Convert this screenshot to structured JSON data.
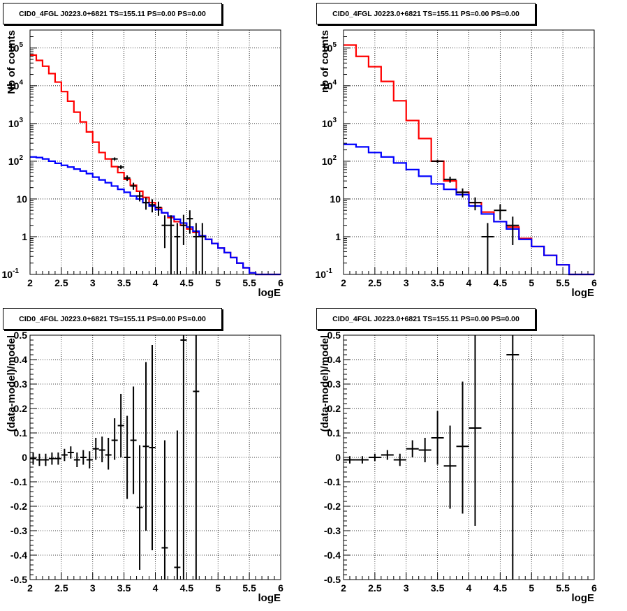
{
  "colors": {
    "total": "#ff0000",
    "model": "#0000ff",
    "data": "#000000",
    "grid": "#000000"
  },
  "chart_data": [
    {
      "type": "line",
      "title": "CID0_4FGL J0223.0+6821 TS=155.11 PS=0.00 PS=0.00",
      "xlabel": "logE",
      "ylabel": "Nb of counts",
      "xlim": [
        2,
        6
      ],
      "ylim": [
        0.1,
        300000
      ],
      "yscale": "log",
      "grid": true,
      "xticks": [
        "2",
        "2.5",
        "3",
        "3.5",
        "4",
        "4.5",
        "5",
        "5.5",
        "6"
      ],
      "yticks": [
        {
          "v": 0.1,
          "base": "10",
          "exp": "-1"
        },
        {
          "v": 1,
          "label": "1"
        },
        {
          "v": 10,
          "label": "10"
        },
        {
          "v": 100,
          "base": "10",
          "exp": "2"
        },
        {
          "v": 1000,
          "base": "10",
          "exp": "3"
        },
        {
          "v": 10000,
          "base": "10",
          "exp": "4"
        },
        {
          "v": 100000,
          "base": "10",
          "exp": "5"
        }
      ],
      "edges": [
        2,
        2.1,
        2.2,
        2.3,
        2.4,
        2.5,
        2.6,
        2.7,
        2.8,
        2.9,
        3.0,
        3.1,
        3.2,
        3.3,
        3.4,
        3.5,
        3.6,
        3.7,
        3.8,
        3.9,
        4.0,
        4.1,
        4.2,
        4.3,
        4.4,
        4.5,
        4.6,
        4.7,
        4.8,
        4.9,
        5.0,
        5.1,
        5.2,
        5.3,
        5.4,
        5.5,
        5.6,
        5.7,
        5.8,
        5.9,
        6.0
      ],
      "series": [
        {
          "name": "",
          "role": "total",
          "values": [
            65000,
            47000,
            33000,
            21000,
            12500,
            7000,
            3900,
            2000,
            1100,
            600,
            320,
            170,
            115,
            72,
            50,
            33,
            23,
            16,
            11,
            8,
            5.8,
            4.3,
            3.2,
            2.5,
            2.0,
            1.6,
            1.3,
            1.05,
            0.85,
            0.66,
            0.5,
            0.38,
            0.28,
            0.2,
            0.15,
            0.11,
            0.1,
            0.1,
            0.1,
            0.1
          ]
        },
        {
          "name": "",
          "role": "model",
          "values": [
            130,
            125,
            115,
            100,
            88,
            78,
            70,
            62,
            55,
            47,
            38,
            32,
            27,
            22,
            18,
            15,
            12,
            10,
            8,
            6.5,
            5.2,
            4.3,
            3.5,
            2.9,
            2.3,
            1.8,
            1.4,
            1.05,
            0.85,
            0.66,
            0.5,
            0.38,
            0.28,
            0.2,
            0.15,
            0.11,
            0.1,
            0.1,
            0.1,
            0.1
          ]
        }
      ],
      "points": [
        {
          "x": 3.35,
          "y": 115,
          "xerr": 0.05,
          "ylo": 105,
          "yhi": 126
        },
        {
          "x": 3.45,
          "y": 70,
          "xerr": 0.05,
          "ylo": 62,
          "yhi": 79
        },
        {
          "x": 3.55,
          "y": 36,
          "xerr": 0.05,
          "ylo": 30,
          "yhi": 42
        },
        {
          "x": 3.65,
          "y": 22,
          "xerr": 0.05,
          "ylo": 17.5,
          "yhi": 27
        },
        {
          "x": 3.75,
          "y": 12,
          "xerr": 0.05,
          "ylo": 8.6,
          "yhi": 15.5
        },
        {
          "x": 3.85,
          "y": 8,
          "xerr": 0.05,
          "ylo": 5.2,
          "yhi": 11
        },
        {
          "x": 3.95,
          "y": 7,
          "xerr": 0.05,
          "ylo": 4.4,
          "yhi": 9.8
        },
        {
          "x": 4.05,
          "y": 6,
          "xerr": 0.05,
          "ylo": 3.6,
          "yhi": 8.5
        },
        {
          "x": 4.15,
          "y": 2,
          "xerr": 0.05,
          "ylo": 0.5,
          "yhi": 3.7
        },
        {
          "x": 4.25,
          "y": 2,
          "xerr": 0.05,
          "ylo": 0.1,
          "yhi": 3.7
        },
        {
          "x": 4.35,
          "y": 1,
          "xerr": 0.05,
          "ylo": 0.1,
          "yhi": 2.3
        },
        {
          "x": 4.45,
          "y": 2,
          "xerr": 0.05,
          "ylo": 0.6,
          "yhi": 3.8
        },
        {
          "x": 4.55,
          "y": 3,
          "xerr": 0.05,
          "ylo": 1.2,
          "yhi": 5.0
        },
        {
          "x": 4.65,
          "y": 1,
          "xerr": 0.05,
          "ylo": 0.1,
          "yhi": 2.3
        },
        {
          "x": 4.75,
          "y": 1,
          "xerr": 0.05,
          "ylo": 0.1,
          "yhi": 2.3
        }
      ]
    },
    {
      "type": "line",
      "title": "CID0_4FGL J0223.0+6821 TS=155.11 PS=0.00 PS=0.00",
      "xlabel": "logE",
      "ylabel": "nb of counts",
      "xlim": [
        2,
        6
      ],
      "ylim": [
        0.1,
        300000
      ],
      "yscale": "log",
      "grid": true,
      "xticks": [
        "2",
        "2.5",
        "3",
        "3.5",
        "4",
        "4.5",
        "5",
        "5.5",
        "6"
      ],
      "yticks": [
        {
          "v": 0.1,
          "base": "10",
          "exp": "-1"
        },
        {
          "v": 1,
          "label": "1"
        },
        {
          "v": 10,
          "label": "10"
        },
        {
          "v": 100,
          "base": "10",
          "exp": "2"
        },
        {
          "v": 1000,
          "base": "10",
          "exp": "3"
        },
        {
          "v": 10000,
          "base": "10",
          "exp": "4"
        },
        {
          "v": 100000,
          "base": "10",
          "exp": "5"
        }
      ],
      "edges": [
        2.0,
        2.2,
        2.4,
        2.6,
        2.8,
        3.0,
        3.2,
        3.4,
        3.6,
        3.8,
        4.0,
        4.2,
        4.4,
        4.6,
        4.8,
        5.0,
        5.2,
        5.4,
        5.6,
        5.8,
        6.0
      ],
      "series": [
        {
          "name": "",
          "role": "total",
          "values": [
            120000,
            60000,
            32000,
            13000,
            4000,
            1200,
            400,
            100,
            30,
            15,
            8,
            4.5,
            2.5,
            1.8,
            0.9,
            0.55,
            0.32,
            0.18,
            0.1,
            0.1
          ]
        },
        {
          "name": "",
          "role": "model",
          "values": [
            280,
            240,
            170,
            130,
            90,
            60,
            40,
            25,
            18,
            13,
            6.5,
            4.0,
            2.5,
            1.6,
            0.85,
            0.55,
            0.32,
            0.18,
            0.1,
            0.1
          ]
        }
      ],
      "points": [
        {
          "x": 3.5,
          "y": 100,
          "xerr": 0.1,
          "ylo": 90,
          "yhi": 110
        },
        {
          "x": 3.7,
          "y": 33,
          "xerr": 0.1,
          "ylo": 27,
          "yhi": 39
        },
        {
          "x": 3.9,
          "y": 15,
          "xerr": 0.1,
          "ylo": 11,
          "yhi": 19
        },
        {
          "x": 4.1,
          "y": 8,
          "xerr": 0.1,
          "ylo": 5,
          "yhi": 11
        },
        {
          "x": 4.3,
          "y": 1,
          "xerr": 0.1,
          "ylo": 0.1,
          "yhi": 2.3
        },
        {
          "x": 4.5,
          "y": 5,
          "xerr": 0.1,
          "ylo": 2.8,
          "yhi": 7.2
        },
        {
          "x": 4.7,
          "y": 2,
          "xerr": 0.1,
          "ylo": 0.6,
          "yhi": 3.4
        }
      ]
    },
    {
      "type": "scatter",
      "title": "CID0_4FGL J0223.0+6821 TS=155.11 PS=0.00 PS=0.00",
      "xlabel": "logE",
      "ylabel": "(data-model)/model",
      "xlim": [
        2,
        6
      ],
      "ylim": [
        -0.5,
        0.5
      ],
      "yscale": "linear",
      "grid": true,
      "xticks": [
        "2",
        "2.5",
        "3",
        "3.5",
        "4",
        "4.5",
        "5",
        "5.5",
        "6"
      ],
      "yticks": [
        {
          "v": -0.5,
          "label": "-0.5"
        },
        {
          "v": -0.4,
          "label": "-0.4"
        },
        {
          "v": -0.3,
          "label": "-0.3"
        },
        {
          "v": -0.2,
          "label": "-0.2"
        },
        {
          "v": -0.1,
          "label": "-0.1"
        },
        {
          "v": 0,
          "label": "0"
        },
        {
          "v": 0.1,
          "label": "0.1"
        },
        {
          "v": 0.2,
          "label": "0.2"
        },
        {
          "v": 0.3,
          "label": "0.3"
        },
        {
          "v": 0.4,
          "label": "0.4"
        },
        {
          "v": 0.5,
          "label": "0.5"
        }
      ],
      "points": [
        {
          "x": 2.05,
          "y": -0.005,
          "xerr": 0.05,
          "ylo": -0.03,
          "yhi": 0.02
        },
        {
          "x": 2.15,
          "y": -0.01,
          "xerr": 0.05,
          "ylo": -0.035,
          "yhi": 0.015
        },
        {
          "x": 2.25,
          "y": -0.01,
          "xerr": 0.05,
          "ylo": -0.035,
          "yhi": 0.015
        },
        {
          "x": 2.35,
          "y": -0.005,
          "xerr": 0.05,
          "ylo": -0.03,
          "yhi": 0.02
        },
        {
          "x": 2.45,
          "y": -0.005,
          "xerr": 0.05,
          "ylo": -0.03,
          "yhi": 0.02
        },
        {
          "x": 2.55,
          "y": 0.01,
          "xerr": 0.05,
          "ylo": -0.015,
          "yhi": 0.035
        },
        {
          "x": 2.65,
          "y": 0.02,
          "xerr": 0.05,
          "ylo": -0.005,
          "yhi": 0.045
        },
        {
          "x": 2.75,
          "y": -0.01,
          "xerr": 0.05,
          "ylo": -0.04,
          "yhi": 0.02
        },
        {
          "x": 2.85,
          "y": 0.0,
          "xerr": 0.05,
          "ylo": -0.03,
          "yhi": 0.03
        },
        {
          "x": 2.95,
          "y": -0.01,
          "xerr": 0.05,
          "ylo": -0.045,
          "yhi": 0.025
        },
        {
          "x": 3.05,
          "y": 0.035,
          "xerr": 0.05,
          "ylo": -0.01,
          "yhi": 0.08
        },
        {
          "x": 3.15,
          "y": 0.03,
          "xerr": 0.05,
          "ylo": -0.02,
          "yhi": 0.085
        },
        {
          "x": 3.25,
          "y": 0.01,
          "xerr": 0.05,
          "ylo": -0.05,
          "yhi": 0.08
        },
        {
          "x": 3.35,
          "y": 0.07,
          "xerr": 0.05,
          "ylo": -0.01,
          "yhi": 0.16
        },
        {
          "x": 3.45,
          "y": 0.13,
          "xerr": 0.05,
          "ylo": 0.0,
          "yhi": 0.26
        },
        {
          "x": 3.55,
          "y": 0.0,
          "xerr": 0.05,
          "ylo": -0.17,
          "yhi": 0.17
        },
        {
          "x": 3.65,
          "y": 0.07,
          "xerr": 0.05,
          "ylo": -0.15,
          "yhi": 0.29
        },
        {
          "x": 3.75,
          "y": -0.205,
          "xerr": 0.05,
          "ylo": -0.46,
          "yhi": 0.05
        },
        {
          "x": 3.85,
          "y": 0.045,
          "xerr": 0.05,
          "ylo": -0.3,
          "yhi": 0.39
        },
        {
          "x": 3.95,
          "y": 0.04,
          "xerr": 0.05,
          "ylo": -0.38,
          "yhi": 0.46
        },
        {
          "x": 4.15,
          "y": -0.37,
          "xerr": 0.05,
          "ylo": -0.5,
          "yhi": 0.07
        },
        {
          "x": 4.35,
          "y": -0.45,
          "xerr": 0.05,
          "ylo": -0.5,
          "yhi": 0.11
        },
        {
          "x": 4.45,
          "y": 0.48,
          "xerr": 0.05,
          "ylo": -0.5,
          "yhi": 0.5
        },
        {
          "x": 4.65,
          "y": 0.27,
          "xerr": 0.05,
          "ylo": -0.5,
          "yhi": 0.5
        }
      ]
    },
    {
      "type": "scatter",
      "title": "CID0_4FGL J0223.0+6821 TS=155.11 PS=0.00 PS=0.00",
      "xlabel": "logE",
      "ylabel": "(data-model)/model",
      "xlim": [
        2,
        6
      ],
      "ylim": [
        -0.5,
        0.5
      ],
      "yscale": "linear",
      "grid": true,
      "xticks": [
        "2",
        "2.5",
        "3",
        "3.5",
        "4",
        "4.5",
        "5",
        "5.5",
        "6"
      ],
      "yticks": [
        {
          "v": -0.5,
          "label": "-0.5"
        },
        {
          "v": -0.4,
          "label": "-0.4"
        },
        {
          "v": -0.3,
          "label": "-0.3"
        },
        {
          "v": -0.2,
          "label": "-0.2"
        },
        {
          "v": -0.1,
          "label": "-0.1"
        },
        {
          "v": 0,
          "label": "0"
        },
        {
          "v": 0.1,
          "label": "0.1"
        },
        {
          "v": 0.2,
          "label": "0.2"
        },
        {
          "v": 0.3,
          "label": "0.3"
        },
        {
          "v": 0.4,
          "label": "0.4"
        },
        {
          "v": 0.5,
          "label": "0.5"
        }
      ],
      "points": [
        {
          "x": 2.1,
          "y": -0.01,
          "xerr": 0.1,
          "ylo": -0.025,
          "yhi": 0.005
        },
        {
          "x": 2.3,
          "y": -0.01,
          "xerr": 0.1,
          "ylo": -0.025,
          "yhi": 0.005
        },
        {
          "x": 2.5,
          "y": 0.0,
          "xerr": 0.1,
          "ylo": -0.015,
          "yhi": 0.015
        },
        {
          "x": 2.7,
          "y": 0.01,
          "xerr": 0.1,
          "ylo": -0.01,
          "yhi": 0.03
        },
        {
          "x": 2.9,
          "y": -0.01,
          "xerr": 0.1,
          "ylo": -0.035,
          "yhi": 0.015
        },
        {
          "x": 3.1,
          "y": 0.035,
          "xerr": 0.1,
          "ylo": 0.0,
          "yhi": 0.07
        },
        {
          "x": 3.3,
          "y": 0.03,
          "xerr": 0.1,
          "ylo": -0.02,
          "yhi": 0.08
        },
        {
          "x": 3.5,
          "y": 0.08,
          "xerr": 0.1,
          "ylo": -0.03,
          "yhi": 0.19
        },
        {
          "x": 3.7,
          "y": -0.035,
          "xerr": 0.1,
          "ylo": -0.21,
          "yhi": 0.13
        },
        {
          "x": 3.9,
          "y": 0.045,
          "xerr": 0.1,
          "ylo": -0.23,
          "yhi": 0.31
        },
        {
          "x": 4.1,
          "y": 0.12,
          "xerr": 0.1,
          "ylo": -0.28,
          "yhi": 0.5
        },
        {
          "x": 4.7,
          "y": 0.42,
          "xerr": 0.1,
          "ylo": -0.5,
          "yhi": 0.5
        }
      ]
    }
  ]
}
